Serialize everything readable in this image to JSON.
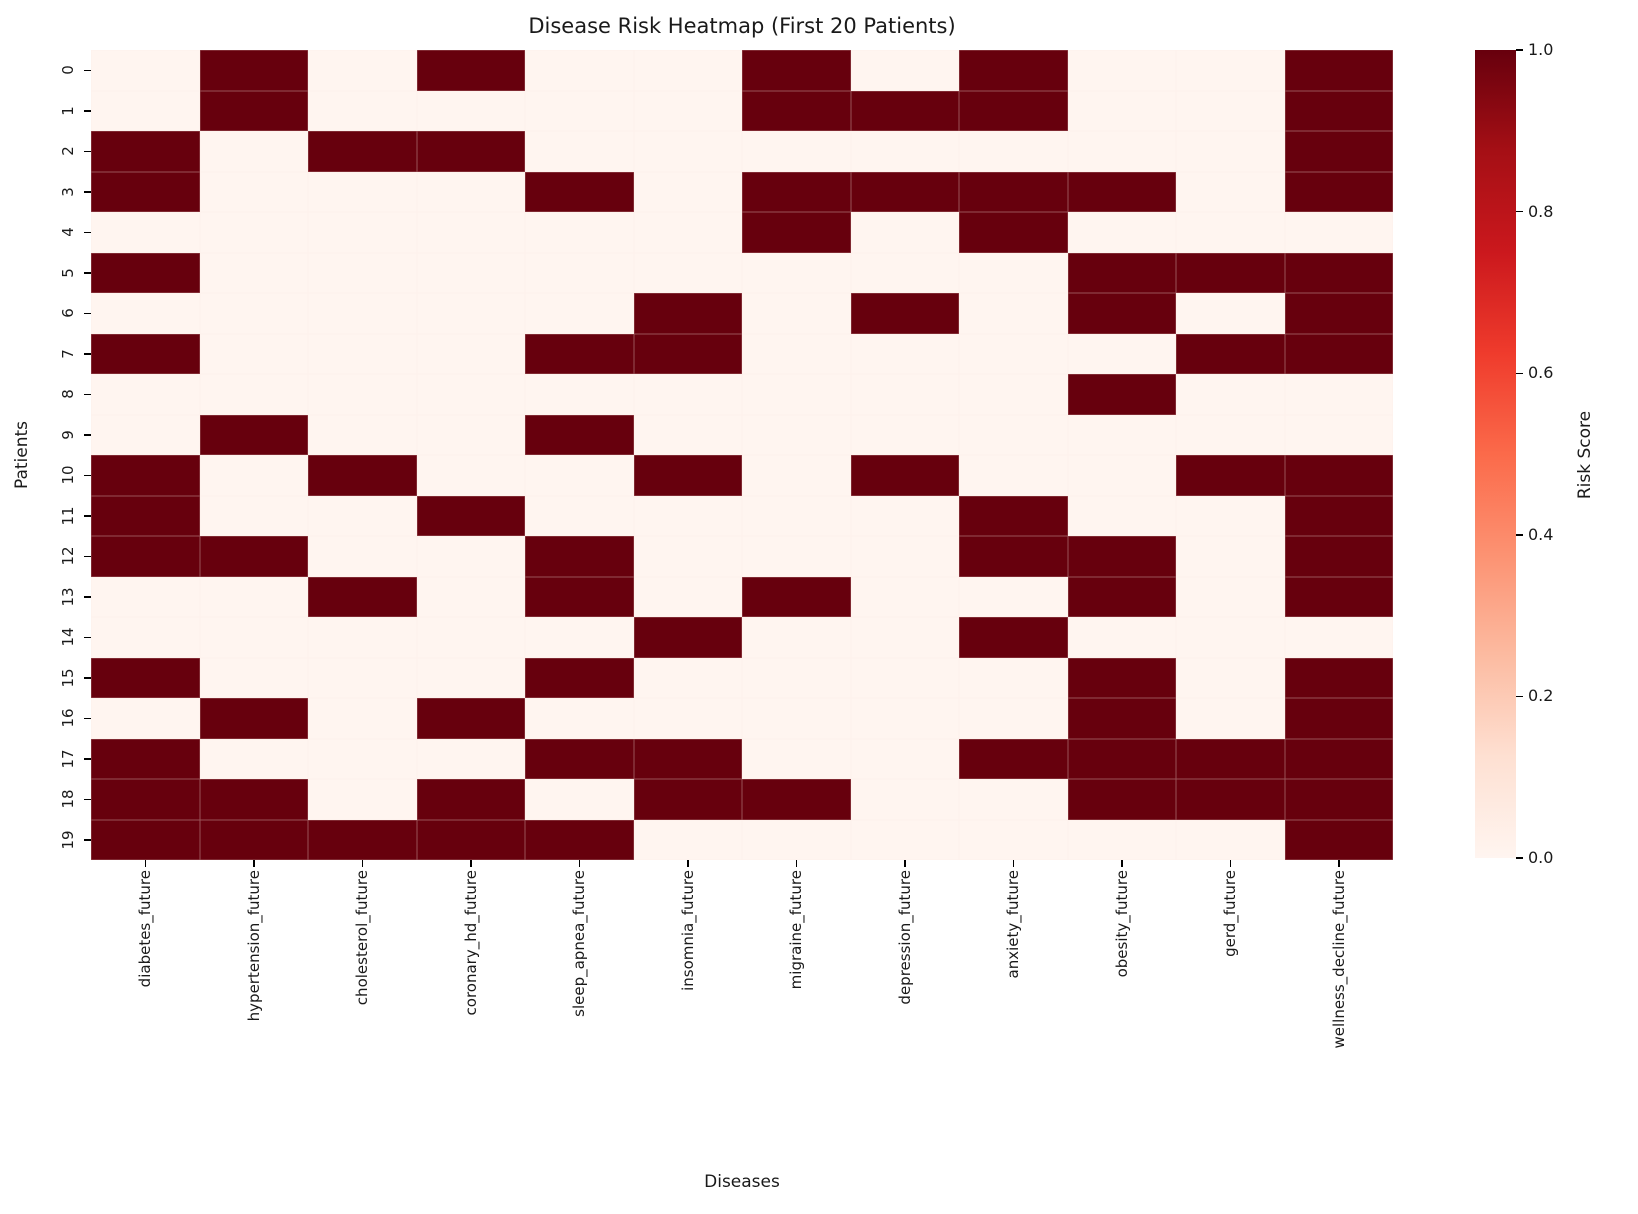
{
  "chart_data": {
    "type": "heatmap",
    "title": "Disease Risk Heatmap (First 20 Patients)",
    "xlabel": "Diseases",
    "ylabel": "Patients",
    "x_labels": [
      "diabetes_future",
      "hypertension_future",
      "cholesterol_future",
      "coronary_hd_future",
      "sleep_apnea_future",
      "insomnia_future",
      "migraine_future",
      "depression_future",
      "anxiety_future",
      "obesity_future",
      "gerd_future",
      "wellness_decline_future"
    ],
    "y_labels": [
      "0",
      "1",
      "2",
      "3",
      "4",
      "5",
      "6",
      "7",
      "8",
      "9",
      "10",
      "11",
      "12",
      "13",
      "14",
      "15",
      "16",
      "17",
      "18",
      "19"
    ],
    "values": [
      [
        0,
        1,
        0,
        1,
        0,
        0,
        1,
        0,
        1,
        0,
        0,
        1
      ],
      [
        0,
        1,
        0,
        0,
        0,
        0,
        1,
        1,
        1,
        0,
        0,
        1
      ],
      [
        1,
        0,
        1,
        1,
        0,
        0,
        0,
        0,
        0,
        0,
        0,
        1
      ],
      [
        1,
        0,
        0,
        0,
        1,
        0,
        1,
        1,
        1,
        1,
        0,
        1
      ],
      [
        0,
        0,
        0,
        0,
        0,
        0,
        1,
        0,
        1,
        0,
        0,
        0
      ],
      [
        1,
        0,
        0,
        0,
        0,
        0,
        0,
        0,
        0,
        1,
        1,
        1
      ],
      [
        0,
        0,
        0,
        0,
        0,
        1,
        0,
        1,
        0,
        1,
        0,
        1
      ],
      [
        1,
        0,
        0,
        0,
        1,
        1,
        0,
        0,
        0,
        0,
        1,
        1
      ],
      [
        0,
        0,
        0,
        0,
        0,
        0,
        0,
        0,
        0,
        1,
        0,
        0
      ],
      [
        0,
        1,
        0,
        0,
        1,
        0,
        0,
        0,
        0,
        0,
        0,
        0
      ],
      [
        1,
        0,
        1,
        0,
        0,
        1,
        0,
        1,
        0,
        0,
        1,
        1
      ],
      [
        1,
        0,
        0,
        1,
        0,
        0,
        0,
        0,
        1,
        0,
        0,
        1
      ],
      [
        1,
        1,
        0,
        0,
        1,
        0,
        0,
        0,
        1,
        1,
        0,
        1
      ],
      [
        0,
        0,
        1,
        0,
        1,
        0,
        1,
        0,
        0,
        1,
        0,
        1
      ],
      [
        0,
        0,
        0,
        0,
        0,
        1,
        0,
        0,
        1,
        0,
        0,
        0
      ],
      [
        1,
        0,
        0,
        0,
        1,
        0,
        0,
        0,
        0,
        1,
        0,
        1
      ],
      [
        0,
        1,
        0,
        1,
        0,
        0,
        0,
        0,
        0,
        1,
        0,
        1
      ],
      [
        1,
        0,
        0,
        0,
        1,
        1,
        0,
        0,
        1,
        1,
        1,
        1
      ],
      [
        1,
        1,
        0,
        1,
        0,
        1,
        1,
        0,
        0,
        1,
        1,
        1
      ],
      [
        1,
        1,
        1,
        1,
        1,
        0,
        0,
        0,
        0,
        0,
        0,
        1
      ]
    ],
    "value_range": [
      0,
      1
    ],
    "grid": false,
    "colorbar": {
      "label": "Risk Score",
      "tick_labels": [
        "1.0",
        "0.8",
        "0.6",
        "0.4",
        "0.2",
        "0.0"
      ],
      "tick_values": [
        1.0,
        0.8,
        0.6,
        0.4,
        0.2,
        0.0
      ]
    },
    "colors": {
      "high": "#67000d",
      "low": "#fff5f0",
      "scale_top_to_bottom": [
        "#67000d",
        "#a50f15",
        "#cb181d",
        "#ef3b2c",
        "#fb6a4a",
        "#fc9272",
        "#fcbba1",
        "#fee0d2",
        "#fff5f0"
      ],
      "text": "#1a1a1a"
    }
  }
}
